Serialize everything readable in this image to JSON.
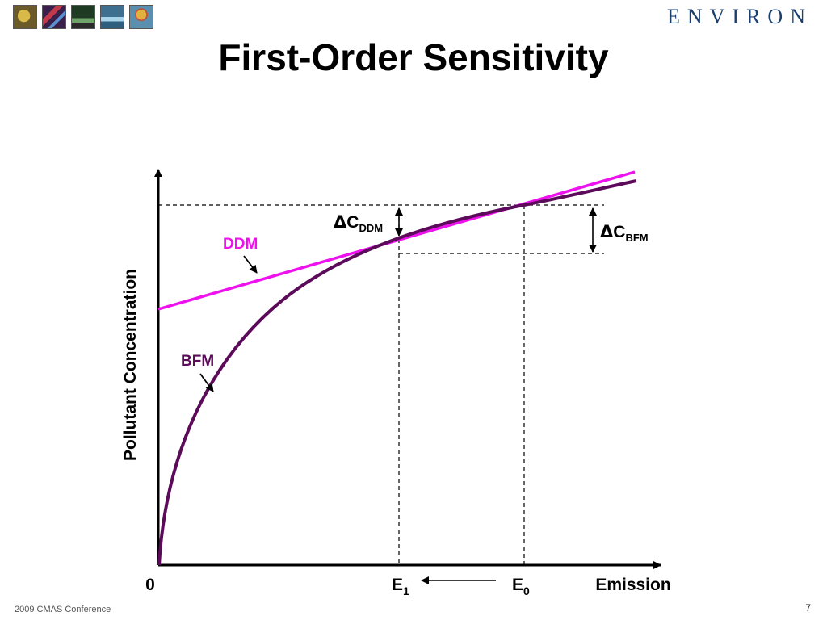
{
  "header": {
    "title": "First-Order Sensitivity",
    "logo_text": "ENVIRON",
    "thumbnails": [
      {
        "name": "globe-thumbnail",
        "color": "#6b5a2a",
        "accent": "#d8b94a"
      },
      {
        "name": "dna-thumbnail",
        "color": "#3a1f4a",
        "accent": "#c23a4a"
      },
      {
        "name": "forest-thumbnail",
        "color": "#1f3a22",
        "accent": "#6fa36a"
      },
      {
        "name": "water-thumbnail",
        "color": "#3f6f8f",
        "accent": "#a9d3e8"
      },
      {
        "name": "balloon-thumbnail",
        "color": "#5a8fb0",
        "accent": "#e0b040"
      }
    ]
  },
  "diagram": {
    "y_axis_label": "Pollutant Concentration",
    "x_axis_label": "Emission",
    "origin_label": "0",
    "e1_label": {
      "base": "E",
      "sub": "1"
    },
    "e0_label": {
      "base": "E",
      "sub": "0"
    },
    "ddm_label": "DDM",
    "bfm_label": "BFM",
    "delta_c_ddm": {
      "delta": "Δ",
      "base": "C",
      "sub": "DDM"
    },
    "delta_c_bfm": {
      "delta": "Δ",
      "base": "C",
      "sub": "BFM"
    },
    "colors": {
      "ddm": "#ee11ee",
      "bfm": "#5c0a5a",
      "axis": "#000000"
    }
  },
  "footer": {
    "conference": "2009 CMAS Conference",
    "page_number": "7"
  }
}
